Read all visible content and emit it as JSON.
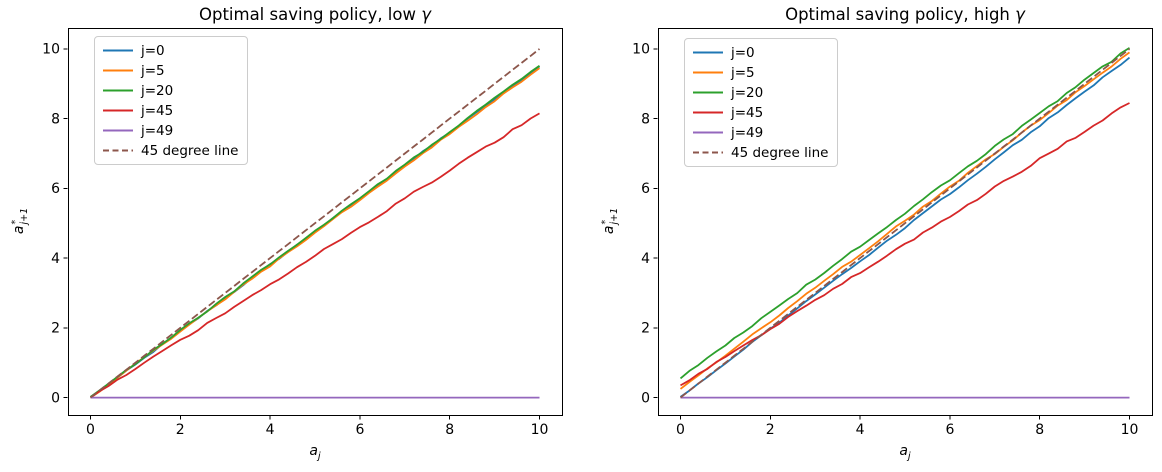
{
  "figure": {
    "background": "#ffffff"
  },
  "chart_data": [
    {
      "type": "line",
      "title": "Optimal saving policy, low γ",
      "title_prefix": "Optimal saving policy, low ",
      "title_symbol": "γ",
      "xlabel": {
        "base": "a",
        "sub": "j"
      },
      "ylabel": {
        "base": "a",
        "sup": "*",
        "sub": "j+1"
      },
      "xlim": [
        -0.5,
        10.5
      ],
      "ylim": [
        -0.5,
        10.6
      ],
      "xticks": [
        0,
        2,
        4,
        6,
        8,
        10
      ],
      "yticks": [
        0,
        2,
        4,
        6,
        8,
        10
      ],
      "grid": false,
      "legend_position": "upper left",
      "x": [
        0,
        1,
        2,
        3,
        4,
        5,
        6,
        7,
        8,
        9,
        10
      ],
      "series": [
        {
          "name": "j=0",
          "color": "#1f77b4",
          "style": "solid",
          "noise": 0.025,
          "y": [
            0.0,
            0.94,
            1.9,
            2.85,
            3.81,
            4.75,
            5.7,
            6.66,
            7.61,
            8.55,
            9.5
          ]
        },
        {
          "name": "j=5",
          "color": "#ff7f0e",
          "style": "solid",
          "noise": 0.025,
          "y": [
            0.0,
            0.95,
            1.89,
            2.84,
            3.78,
            4.73,
            5.67,
            6.62,
            7.56,
            8.51,
            9.45
          ]
        },
        {
          "name": "j=20",
          "color": "#2ca02c",
          "style": "solid",
          "noise": 0.025,
          "y": [
            0.02,
            0.97,
            1.92,
            2.87,
            3.83,
            4.78,
            5.73,
            6.68,
            7.63,
            8.58,
            9.52
          ]
        },
        {
          "name": "j=45",
          "color": "#d62728",
          "style": "solid",
          "noise": 0.035,
          "y": [
            0.0,
            0.82,
            1.63,
            2.45,
            3.26,
            4.08,
            4.89,
            5.71,
            6.52,
            7.34,
            8.15
          ]
        },
        {
          "name": "j=49",
          "color": "#9467bd",
          "style": "solid",
          "noise": 0,
          "y": [
            0,
            0,
            0,
            0,
            0,
            0,
            0,
            0,
            0,
            0,
            0
          ]
        },
        {
          "name": "45 degree line",
          "color": "#8c564b",
          "style": "dashed",
          "noise": 0,
          "y": [
            0,
            1,
            2,
            3,
            4,
            5,
            6,
            7,
            8,
            9,
            10
          ]
        }
      ]
    },
    {
      "type": "line",
      "title": "Optimal saving policy, high γ",
      "title_prefix": "Optimal saving policy, high ",
      "title_symbol": "γ",
      "xlabel": {
        "base": "a",
        "sub": "j"
      },
      "ylabel": {
        "base": "a",
        "sup": "*",
        "sub": "j+1"
      },
      "xlim": [
        -0.5,
        10.5
      ],
      "ylim": [
        -0.5,
        10.6
      ],
      "xticks": [
        0,
        2,
        4,
        6,
        8,
        10
      ],
      "yticks": [
        0,
        2,
        4,
        6,
        8,
        10
      ],
      "grid": false,
      "legend_position": "upper left",
      "x": [
        0,
        1,
        2,
        3,
        4,
        5,
        6,
        7,
        8,
        9,
        10
      ],
      "series": [
        {
          "name": "j=0",
          "color": "#1f77b4",
          "style": "solid",
          "noise": 0.025,
          "y": [
            0.02,
            0.99,
            1.97,
            2.94,
            3.91,
            4.88,
            5.85,
            6.83,
            7.8,
            8.78,
            9.75
          ]
        },
        {
          "name": "j=5",
          "color": "#ff7f0e",
          "style": "solid",
          "noise": 0.025,
          "y": [
            0.25,
            1.22,
            2.18,
            3.15,
            4.11,
            5.08,
            6.04,
            7.01,
            7.97,
            8.94,
            9.9
          ]
        },
        {
          "name": "j=20",
          "color": "#2ca02c",
          "style": "solid",
          "noise": 0.03,
          "y": [
            0.55,
            1.5,
            2.45,
            3.4,
            4.35,
            5.3,
            6.25,
            7.2,
            8.15,
            9.1,
            10.03
          ]
        },
        {
          "name": "j=45",
          "color": "#d62728",
          "style": "solid",
          "noise": 0.035,
          "y": [
            0.35,
            1.16,
            1.97,
            2.78,
            3.59,
            4.4,
            5.21,
            6.02,
            6.83,
            7.64,
            8.45
          ]
        },
        {
          "name": "j=49",
          "color": "#9467bd",
          "style": "solid",
          "noise": 0,
          "y": [
            0,
            0,
            0,
            0,
            0,
            0,
            0,
            0,
            0,
            0,
            0
          ]
        },
        {
          "name": "45 degree line",
          "color": "#8c564b",
          "style": "dashed",
          "noise": 0,
          "y": [
            0,
            1,
            2,
            3,
            4,
            5,
            6,
            7,
            8,
            9,
            10
          ]
        }
      ]
    }
  ]
}
